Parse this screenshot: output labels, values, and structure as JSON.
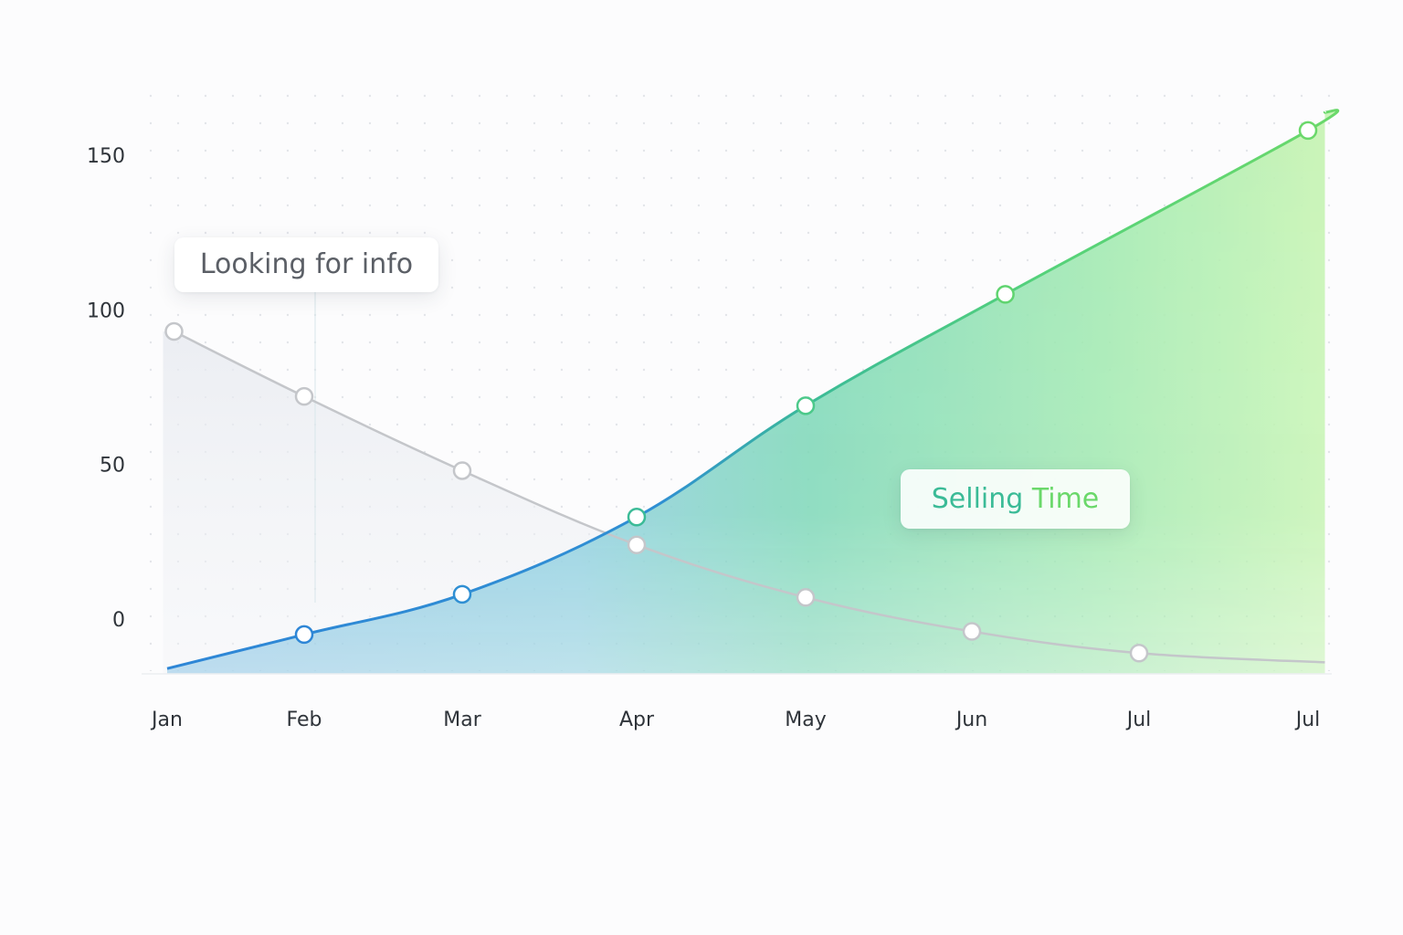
{
  "chart_data": {
    "type": "area",
    "categories": [
      "Jan",
      "Feb",
      "Mar",
      "Apr",
      "May",
      "Jun",
      "Jul",
      "Jul"
    ],
    "y_ticks": [
      150,
      100,
      50,
      0
    ],
    "ylim": [
      -18,
      170
    ],
    "grid": "dotted",
    "series": [
      {
        "name": "Looking for info",
        "style": "line",
        "color": "#c4c6ca",
        "points": [
          {
            "x": 0.05,
            "y": 93
          },
          {
            "x": 1.0,
            "y": 72
          },
          {
            "x": 2.0,
            "y": 48
          },
          {
            "x": 3.0,
            "y": 24
          },
          {
            "x": 4.0,
            "y": 7
          },
          {
            "x": 5.0,
            "y": -4
          },
          {
            "x": 6.0,
            "y": -11
          }
        ],
        "end": {
          "x": 7.1,
          "y": -14
        }
      },
      {
        "name": "Selling Time",
        "style": "area",
        "colors": [
          "#2e86d6",
          "#3bbb97",
          "#6ad86a"
        ],
        "start": {
          "x": 0.0,
          "y": -16
        },
        "points": [
          {
            "x": 1.0,
            "y": -5
          },
          {
            "x": 2.0,
            "y": 8
          },
          {
            "x": 3.0,
            "y": 33
          },
          {
            "x": 4.0,
            "y": 69
          },
          {
            "x": 5.2,
            "y": 105
          },
          {
            "x": 7.0,
            "y": 158
          }
        ],
        "end": {
          "x": 7.1,
          "y": 164
        }
      }
    ]
  },
  "callouts": {
    "looking": "Looking for info",
    "selling_word_1": "Selling",
    "selling_word_2": "Time"
  }
}
